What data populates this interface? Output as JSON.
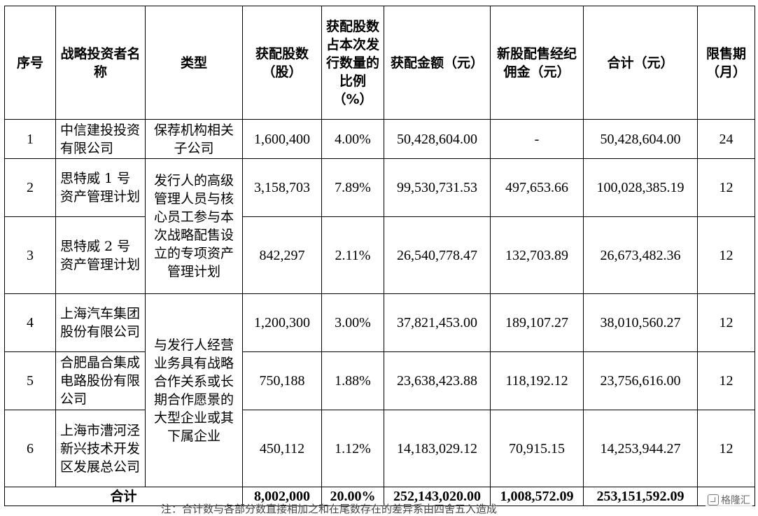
{
  "headers": {
    "no": "序号",
    "investor": "战略投资者名称",
    "type": "类型",
    "shares": "获配股数（股）",
    "ratio": "获配股数占本次发行数量的比例（%）",
    "amount": "获配金额（元）",
    "commission": "新股配售经纪佣金（元）",
    "total": "合计（元）",
    "lockup": "限售期（月）"
  },
  "rows": [
    {
      "no": "1",
      "investor": "中信建投投资有限公司",
      "shares": "1,600,400",
      "ratio": "4.00%",
      "amount": "50,428,604.00",
      "commission": "-",
      "total": "50,428,604.00",
      "lockup": "24"
    },
    {
      "no": "2",
      "investor": "思特威 1 号资产管理计划",
      "shares": "3,158,703",
      "ratio": "7.89%",
      "amount": "99,530,731.53",
      "commission": "497,653.66",
      "total": "100,028,385.19",
      "lockup": "12"
    },
    {
      "no": "3",
      "investor": "思特威 2 号资产管理计划",
      "shares": "842,297",
      "ratio": "2.11%",
      "amount": "26,540,778.47",
      "commission": "132,703.89",
      "total": "26,673,482.36",
      "lockup": "12"
    },
    {
      "no": "4",
      "investor": "上海汽车集团股份有限公司",
      "shares": "1,200,300",
      "ratio": "3.00%",
      "amount": "37,821,453.00",
      "commission": "189,107.27",
      "total": "38,010,560.27",
      "lockup": "12"
    },
    {
      "no": "5",
      "investor": "合肥晶合集成电路股份有限公司",
      "shares": "750,188",
      "ratio": "1.88%",
      "amount": "23,638,423.88",
      "commission": "118,192.12",
      "total": "23,756,616.00",
      "lockup": "12"
    },
    {
      "no": "6",
      "investor": "上海市漕河泾新兴技术开发区发展总公司",
      "shares": "450,112",
      "ratio": "1.12%",
      "amount": "14,183,029.12",
      "commission": "70,915.15",
      "total": "14,253,944.27",
      "lockup": "12"
    }
  ],
  "types": {
    "t1": "保荐机构相关子公司",
    "t2": "发行人的高级管理人员与核心员工参与本次战略配售设立的专项资产管理计划",
    "t3": "与发行人经营业务具有战略合作关系或长期合作愿景的大型企业或其下属企业"
  },
  "total_row": {
    "label": "合计",
    "shares": "8,002,000",
    "ratio": "20.00%",
    "amount": "252,143,020.00",
    "commission": "1,008,572.09",
    "total": "253,151,592.09"
  },
  "footnote": "注：合计数与各部分数直接相加之和在尾数存在的差异系由四舍五入造成",
  "watermark": "格隆汇"
}
